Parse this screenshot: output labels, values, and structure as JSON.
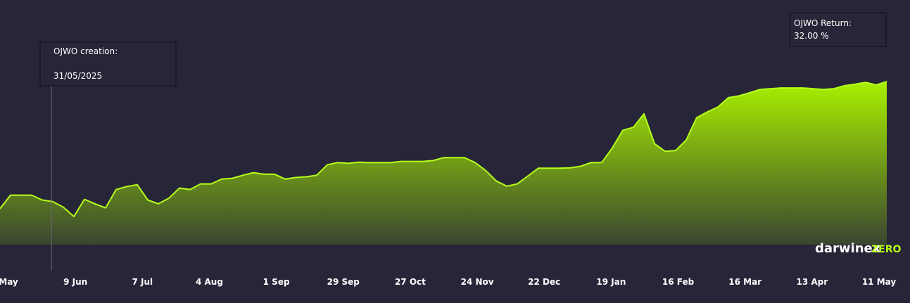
{
  "chart_data": {
    "type": "area",
    "color": "#b5ff1a",
    "xticks": [
      "May",
      "9 Jun",
      "7 Jul",
      "4 Aug",
      "1 Sep",
      "29 Sep",
      "27 Oct",
      "24 Nov",
      "22 Dec",
      "19 Jan",
      "16 Feb",
      "16 Mar",
      "13 Apr",
      "11 May"
    ],
    "ylim": [
      -11.5,
      50
    ],
    "values": [
      -1.9,
      1.7,
      1.7,
      1.7,
      0.4,
      0,
      -1.5,
      -4.0,
      0.6,
      -0.6,
      -1.7,
      3.2,
      4.0,
      4.5,
      0.4,
      -0.6,
      0.9,
      3.6,
      3.2,
      4.7,
      4.7,
      6.0,
      6.2,
      7.0,
      7.7,
      7.3,
      7.3,
      6.0,
      6.4,
      6.6,
      7.0,
      9.8,
      10.4,
      10.2,
      10.5,
      10.4,
      10.4,
      10.4,
      10.7,
      10.7,
      10.7,
      10.9,
      11.7,
      11.7,
      11.7,
      10.4,
      8.3,
      5.5,
      4.1,
      4.7,
      6.8,
      8.9,
      8.9,
      8.9,
      9.0,
      9.4,
      10.4,
      10.4,
      14.3,
      19.0,
      19.8,
      23.4,
      15.4,
      13.4,
      13.6,
      16.4,
      22.4,
      23.9,
      25.2,
      27.7,
      28.2,
      29.0,
      29.9,
      30.1,
      30.3,
      30.3,
      30.3,
      30.1,
      29.9,
      30.1,
      30.9,
      31.3,
      31.8,
      31.1,
      32.0
    ],
    "annotations": [
      {
        "label": "OJWO creation:",
        "text": "31/05/2025"
      },
      {
        "label": "OJWO Return:",
        "text": "32.00 %"
      }
    ],
    "brand": {
      "name": "darwinex",
      "suffix": "ZERO"
    }
  }
}
